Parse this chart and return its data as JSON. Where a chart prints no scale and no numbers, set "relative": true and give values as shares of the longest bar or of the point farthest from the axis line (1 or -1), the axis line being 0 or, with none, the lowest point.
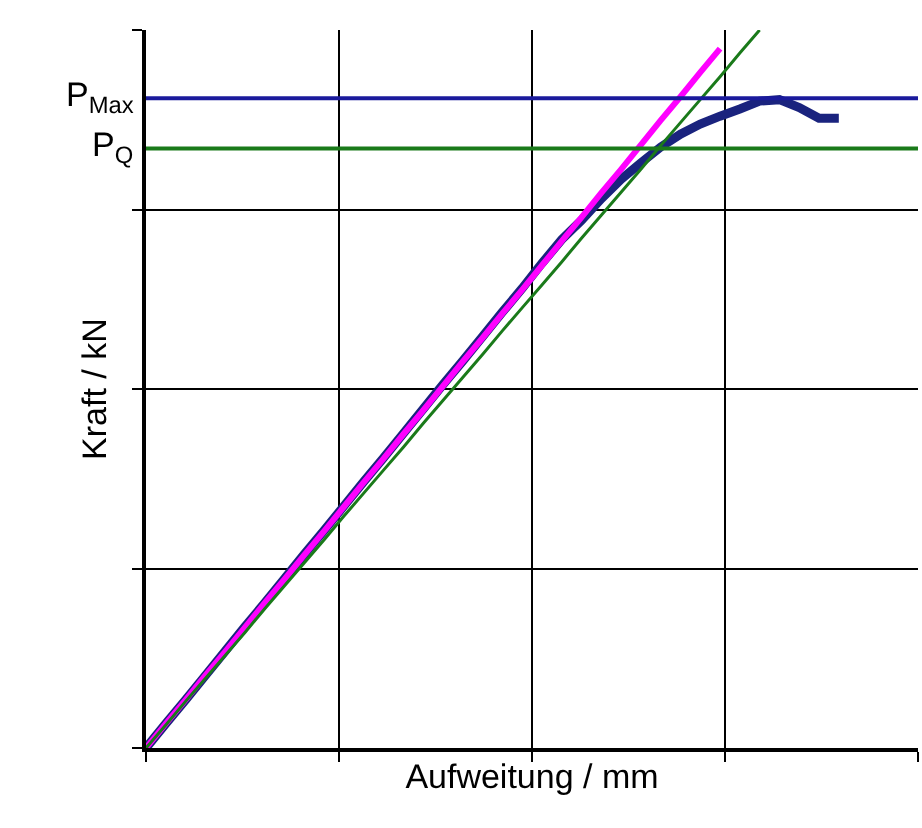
{
  "chart_data": {
    "type": "line",
    "xlabel": "Aufweitung / mm",
    "ylabel": "Kraft / kN",
    "relative": true,
    "grid": true,
    "tick_labels": false,
    "marker": "none",
    "line_style": "solid",
    "categories": [
      null,
      null,
      null,
      null,
      null,
      null,
      null,
      null,
      null,
      null,
      null,
      null,
      null,
      null,
      null,
      null,
      null,
      null,
      null,
      null,
      null,
      null,
      null,
      null,
      null,
      null,
      null,
      null,
      null,
      null,
      null,
      null,
      null,
      null,
      null,
      null,
      null,
      null,
      null,
      null
    ],
    "series": [
      {
        "color": "#1a237e",
        "values": [
          0,
          0.034,
          0.067,
          0.101,
          0.135,
          0.169,
          0.202,
          0.236,
          0.27,
          0.303,
          0.337,
          0.371,
          0.404,
          0.438,
          0.472,
          0.506,
          0.539,
          0.573,
          0.607,
          0.64,
          0.675,
          0.708,
          0.735,
          0.765,
          0.792,
          0.815,
          0.837,
          0.855,
          0.869,
          0.88,
          0.89,
          0.901,
          0.903,
          0.892,
          0.877,
          0.877,
          null,
          null,
          null,
          null
        ]
      },
      {
        "color": "#ff00ff",
        "values": [
          0,
          0.034,
          0.067,
          0.101,
          0.134,
          0.168,
          0.202,
          0.235,
          0.269,
          0.302,
          0.336,
          0.37,
          0.403,
          0.437,
          0.47,
          0.504,
          0.538,
          0.571,
          0.605,
          0.638,
          0.672,
          0.706,
          0.739,
          0.773,
          0.806,
          0.84,
          0.874,
          0.907,
          0.941,
          0.974,
          null,
          null,
          null,
          null,
          null,
          null,
          null,
          null,
          null,
          null
        ]
      },
      {
        "color": "#1a7a1a",
        "values": [
          0,
          0.032,
          0.065,
          0.097,
          0.129,
          0.161,
          0.194,
          0.226,
          0.258,
          0.29,
          0.323,
          0.355,
          0.387,
          0.419,
          0.452,
          0.484,
          0.516,
          0.548,
          0.581,
          0.613,
          0.645,
          0.677,
          0.71,
          0.742,
          0.774,
          0.806,
          0.839,
          0.871,
          0.903,
          0.935,
          0.968,
          1.0,
          null,
          null,
          null,
          null,
          null,
          null,
          null,
          null
        ]
      }
    ],
    "ref_lines": [
      {
        "axis": "y",
        "value": 0.905,
        "label": "P$_{Max}$",
        "color": "#1a1a9c"
      },
      {
        "axis": "y",
        "value": 0.835,
        "label": "P$_{Q}$",
        "color": "#1a7a1a"
      }
    ]
  }
}
